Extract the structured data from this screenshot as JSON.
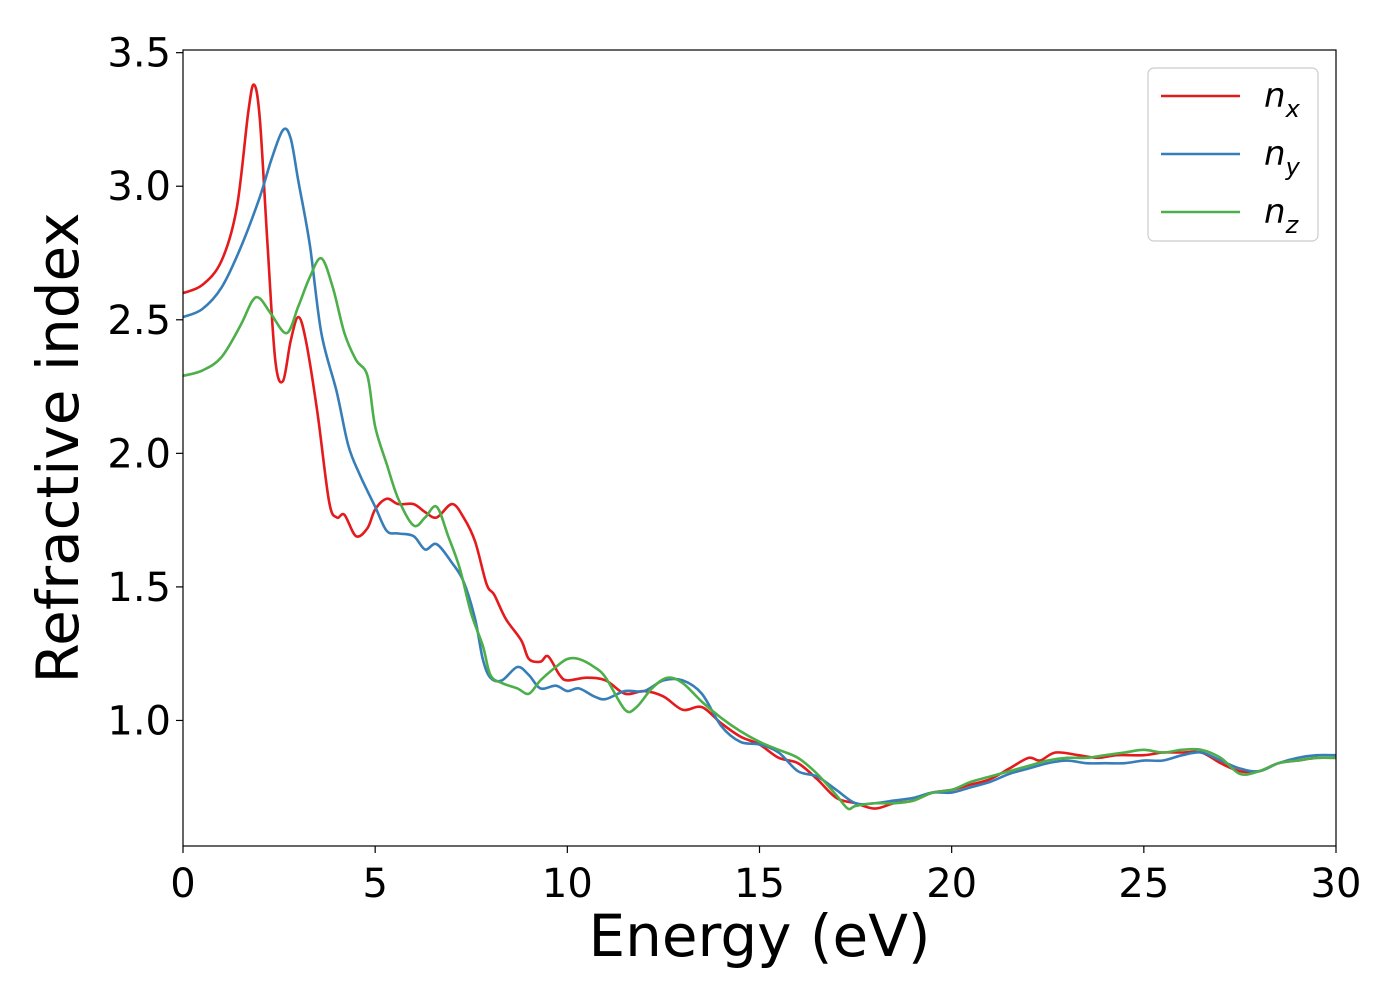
{
  "chart_data": {
    "type": "line",
    "title": "",
    "xlabel": "Energy (eV)",
    "ylabel": "Refractive index",
    "xlim": [
      0,
      30
    ],
    "ylim": [
      0.53,
      3.51
    ],
    "xticks": [
      0,
      5,
      10,
      15,
      20,
      25,
      30
    ],
    "xtick_labels": [
      "0",
      "5",
      "10",
      "15",
      "20",
      "25",
      "30"
    ],
    "yticks": [
      1.0,
      1.5,
      2.0,
      2.5,
      3.0,
      3.5
    ],
    "ytick_labels": [
      "1.0",
      "1.5",
      "2.0",
      "2.5",
      "3.0",
      "3.5"
    ],
    "grid": false,
    "legend_position": "top-right",
    "series": [
      {
        "name": "n",
        "subscript": "x",
        "color": "#e41a1c",
        "points": [
          [
            0.0,
            2.6
          ],
          [
            0.5,
            2.63
          ],
          [
            1.0,
            2.72
          ],
          [
            1.4,
            2.92
          ],
          [
            1.7,
            3.28
          ],
          [
            1.85,
            3.38
          ],
          [
            2.0,
            3.25
          ],
          [
            2.2,
            2.78
          ],
          [
            2.4,
            2.35
          ],
          [
            2.6,
            2.27
          ],
          [
            2.8,
            2.42
          ],
          [
            3.0,
            2.51
          ],
          [
            3.2,
            2.42
          ],
          [
            3.5,
            2.15
          ],
          [
            3.8,
            1.82
          ],
          [
            4.0,
            1.76
          ],
          [
            4.2,
            1.77
          ],
          [
            4.5,
            1.69
          ],
          [
            4.8,
            1.72
          ],
          [
            5.0,
            1.79
          ],
          [
            5.3,
            1.83
          ],
          [
            5.6,
            1.81
          ],
          [
            6.0,
            1.81
          ],
          [
            6.3,
            1.78
          ],
          [
            6.6,
            1.76
          ],
          [
            7.0,
            1.81
          ],
          [
            7.3,
            1.76
          ],
          [
            7.6,
            1.67
          ],
          [
            7.9,
            1.51
          ],
          [
            8.1,
            1.47
          ],
          [
            8.4,
            1.38
          ],
          [
            8.8,
            1.3
          ],
          [
            9.0,
            1.23
          ],
          [
            9.3,
            1.22
          ],
          [
            9.5,
            1.24
          ],
          [
            9.8,
            1.17
          ],
          [
            10.0,
            1.15
          ],
          [
            10.5,
            1.16
          ],
          [
            11.0,
            1.15
          ],
          [
            11.5,
            1.1
          ],
          [
            12.0,
            1.11
          ],
          [
            12.5,
            1.09
          ],
          [
            13.0,
            1.04
          ],
          [
            13.5,
            1.05
          ],
          [
            14.0,
            0.99
          ],
          [
            14.5,
            0.94
          ],
          [
            15.0,
            0.91
          ],
          [
            15.5,
            0.86
          ],
          [
            16.0,
            0.84
          ],
          [
            16.5,
            0.78
          ],
          [
            17.0,
            0.71
          ],
          [
            17.5,
            0.69
          ],
          [
            18.0,
            0.67
          ],
          [
            18.5,
            0.69
          ],
          [
            19.0,
            0.7
          ],
          [
            19.5,
            0.73
          ],
          [
            20.0,
            0.74
          ],
          [
            20.5,
            0.76
          ],
          [
            21.0,
            0.78
          ],
          [
            21.5,
            0.82
          ],
          [
            22.0,
            0.86
          ],
          [
            22.3,
            0.85
          ],
          [
            22.7,
            0.88
          ],
          [
            23.3,
            0.87
          ],
          [
            23.8,
            0.86
          ],
          [
            24.3,
            0.87
          ],
          [
            25.0,
            0.87
          ],
          [
            25.5,
            0.88
          ],
          [
            26.0,
            0.88
          ],
          [
            26.5,
            0.88
          ],
          [
            27.0,
            0.84
          ],
          [
            27.5,
            0.81
          ],
          [
            28.0,
            0.81
          ],
          [
            28.5,
            0.84
          ],
          [
            29.0,
            0.85
          ],
          [
            29.5,
            0.86
          ],
          [
            30.0,
            0.86
          ]
        ]
      },
      {
        "name": "n",
        "subscript": "y",
        "color": "#377eb8",
        "points": [
          [
            0.0,
            2.51
          ],
          [
            0.5,
            2.54
          ],
          [
            1.0,
            2.62
          ],
          [
            1.5,
            2.77
          ],
          [
            2.0,
            2.96
          ],
          [
            2.3,
            3.1
          ],
          [
            2.6,
            3.21
          ],
          [
            2.8,
            3.18
          ],
          [
            3.0,
            3.02
          ],
          [
            3.3,
            2.78
          ],
          [
            3.6,
            2.45
          ],
          [
            4.0,
            2.23
          ],
          [
            4.3,
            2.03
          ],
          [
            4.6,
            1.92
          ],
          [
            5.0,
            1.8
          ],
          [
            5.3,
            1.71
          ],
          [
            5.6,
            1.7
          ],
          [
            6.0,
            1.69
          ],
          [
            6.3,
            1.64
          ],
          [
            6.6,
            1.66
          ],
          [
            7.0,
            1.59
          ],
          [
            7.3,
            1.52
          ],
          [
            7.6,
            1.38
          ],
          [
            7.8,
            1.23
          ],
          [
            8.0,
            1.16
          ],
          [
            8.3,
            1.15
          ],
          [
            8.7,
            1.2
          ],
          [
            9.0,
            1.17
          ],
          [
            9.3,
            1.12
          ],
          [
            9.7,
            1.13
          ],
          [
            10.0,
            1.11
          ],
          [
            10.3,
            1.12
          ],
          [
            10.7,
            1.09
          ],
          [
            11.0,
            1.08
          ],
          [
            11.5,
            1.11
          ],
          [
            12.0,
            1.11
          ],
          [
            12.5,
            1.15
          ],
          [
            13.0,
            1.15
          ],
          [
            13.5,
            1.1
          ],
          [
            14.0,
            0.98
          ],
          [
            14.5,
            0.92
          ],
          [
            15.0,
            0.91
          ],
          [
            15.5,
            0.88
          ],
          [
            16.0,
            0.81
          ],
          [
            16.5,
            0.79
          ],
          [
            17.0,
            0.74
          ],
          [
            17.5,
            0.69
          ],
          [
            18.0,
            0.69
          ],
          [
            18.5,
            0.7
          ],
          [
            19.0,
            0.71
          ],
          [
            19.5,
            0.73
          ],
          [
            20.0,
            0.73
          ],
          [
            20.5,
            0.75
          ],
          [
            21.0,
            0.77
          ],
          [
            21.5,
            0.8
          ],
          [
            22.0,
            0.82
          ],
          [
            22.5,
            0.84
          ],
          [
            23.0,
            0.85
          ],
          [
            23.5,
            0.84
          ],
          [
            24.0,
            0.84
          ],
          [
            24.5,
            0.84
          ],
          [
            25.0,
            0.85
          ],
          [
            25.5,
            0.85
          ],
          [
            26.0,
            0.87
          ],
          [
            26.5,
            0.88
          ],
          [
            27.0,
            0.85
          ],
          [
            27.5,
            0.82
          ],
          [
            28.0,
            0.81
          ],
          [
            28.5,
            0.84
          ],
          [
            29.0,
            0.86
          ],
          [
            29.5,
            0.87
          ],
          [
            30.0,
            0.87
          ]
        ]
      },
      {
        "name": "n",
        "subscript": "z",
        "color": "#4daf4a",
        "points": [
          [
            0.0,
            2.29
          ],
          [
            0.5,
            2.31
          ],
          [
            1.0,
            2.36
          ],
          [
            1.5,
            2.48
          ],
          [
            1.8,
            2.57
          ],
          [
            2.0,
            2.58
          ],
          [
            2.3,
            2.52
          ],
          [
            2.7,
            2.45
          ],
          [
            3.0,
            2.55
          ],
          [
            3.3,
            2.66
          ],
          [
            3.6,
            2.73
          ],
          [
            3.9,
            2.62
          ],
          [
            4.2,
            2.45
          ],
          [
            4.5,
            2.35
          ],
          [
            4.8,
            2.29
          ],
          [
            5.0,
            2.1
          ],
          [
            5.3,
            1.96
          ],
          [
            5.6,
            1.83
          ],
          [
            6.0,
            1.73
          ],
          [
            6.3,
            1.76
          ],
          [
            6.6,
            1.8
          ],
          [
            6.9,
            1.69
          ],
          [
            7.2,
            1.57
          ],
          [
            7.5,
            1.4
          ],
          [
            7.8,
            1.28
          ],
          [
            8.0,
            1.17
          ],
          [
            8.3,
            1.14
          ],
          [
            8.7,
            1.12
          ],
          [
            9.0,
            1.1
          ],
          [
            9.3,
            1.15
          ],
          [
            9.7,
            1.2
          ],
          [
            10.0,
            1.23
          ],
          [
            10.3,
            1.23
          ],
          [
            10.7,
            1.2
          ],
          [
            11.0,
            1.16
          ],
          [
            11.5,
            1.04
          ],
          [
            11.8,
            1.05
          ],
          [
            12.2,
            1.12
          ],
          [
            12.6,
            1.16
          ],
          [
            13.0,
            1.14
          ],
          [
            13.5,
            1.07
          ],
          [
            14.0,
            1.01
          ],
          [
            14.5,
            0.96
          ],
          [
            15.0,
            0.92
          ],
          [
            15.5,
            0.89
          ],
          [
            16.0,
            0.86
          ],
          [
            16.5,
            0.8
          ],
          [
            17.0,
            0.72
          ],
          [
            17.3,
            0.67
          ],
          [
            17.5,
            0.68
          ],
          [
            18.0,
            0.69
          ],
          [
            18.5,
            0.69
          ],
          [
            19.0,
            0.7
          ],
          [
            19.5,
            0.73
          ],
          [
            20.0,
            0.74
          ],
          [
            20.5,
            0.77
          ],
          [
            21.0,
            0.79
          ],
          [
            21.5,
            0.81
          ],
          [
            22.0,
            0.83
          ],
          [
            22.5,
            0.85
          ],
          [
            23.0,
            0.86
          ],
          [
            23.5,
            0.86
          ],
          [
            24.0,
            0.87
          ],
          [
            24.5,
            0.88
          ],
          [
            25.0,
            0.89
          ],
          [
            25.5,
            0.88
          ],
          [
            26.0,
            0.89
          ],
          [
            26.5,
            0.89
          ],
          [
            27.0,
            0.86
          ],
          [
            27.5,
            0.8
          ],
          [
            28.0,
            0.81
          ],
          [
            28.5,
            0.84
          ],
          [
            29.0,
            0.85
          ],
          [
            29.5,
            0.86
          ],
          [
            30.0,
            0.86
          ]
        ]
      }
    ]
  }
}
